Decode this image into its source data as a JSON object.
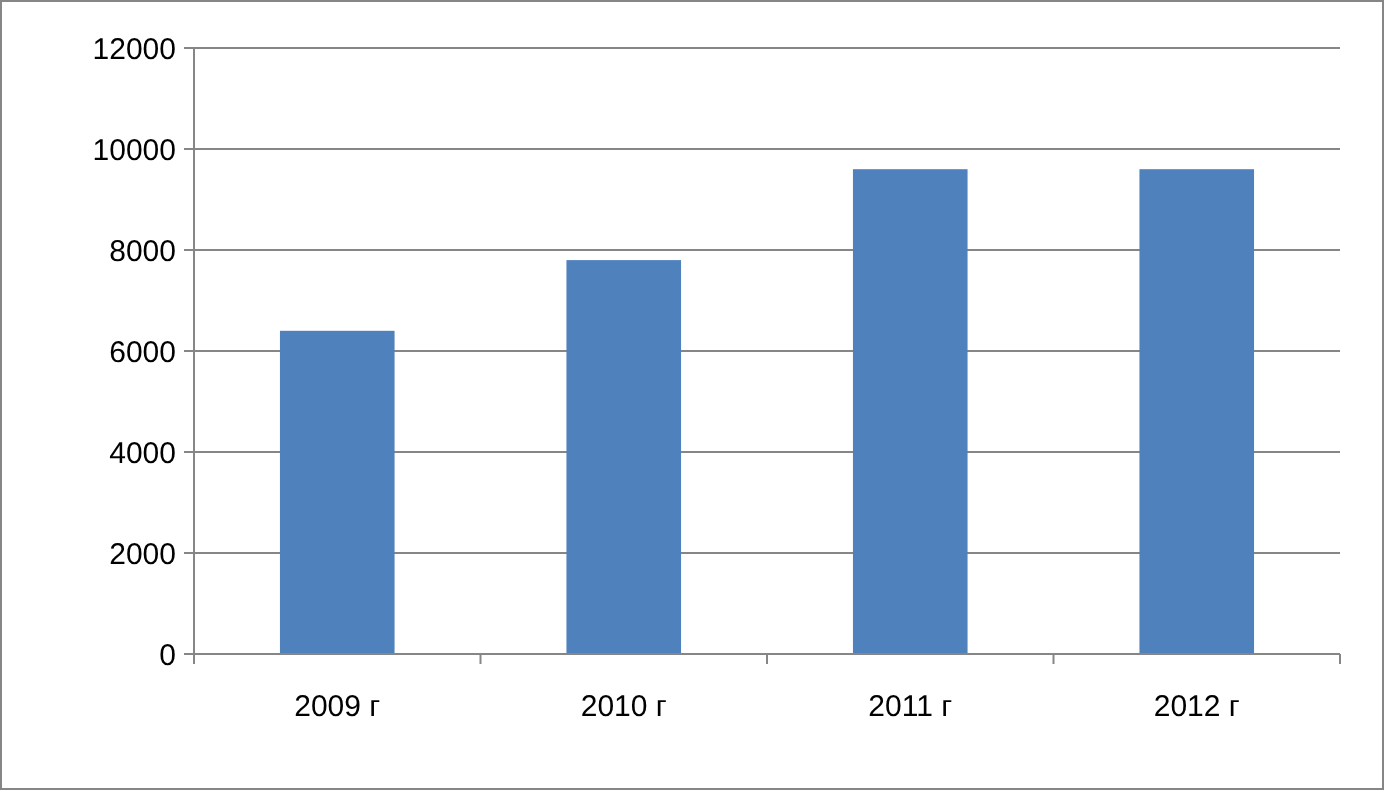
{
  "chart_data": {
    "type": "bar",
    "categories": [
      "2009 г",
      "2010 г",
      "2011 г",
      "2012 г"
    ],
    "values": [
      6400,
      7800,
      9600,
      9600
    ],
    "color": "#4f81bd",
    "ylim": [
      0,
      12000
    ],
    "yticks": [
      0,
      2000,
      4000,
      6000,
      8000,
      10000,
      12000
    ],
    "grid": "y"
  }
}
